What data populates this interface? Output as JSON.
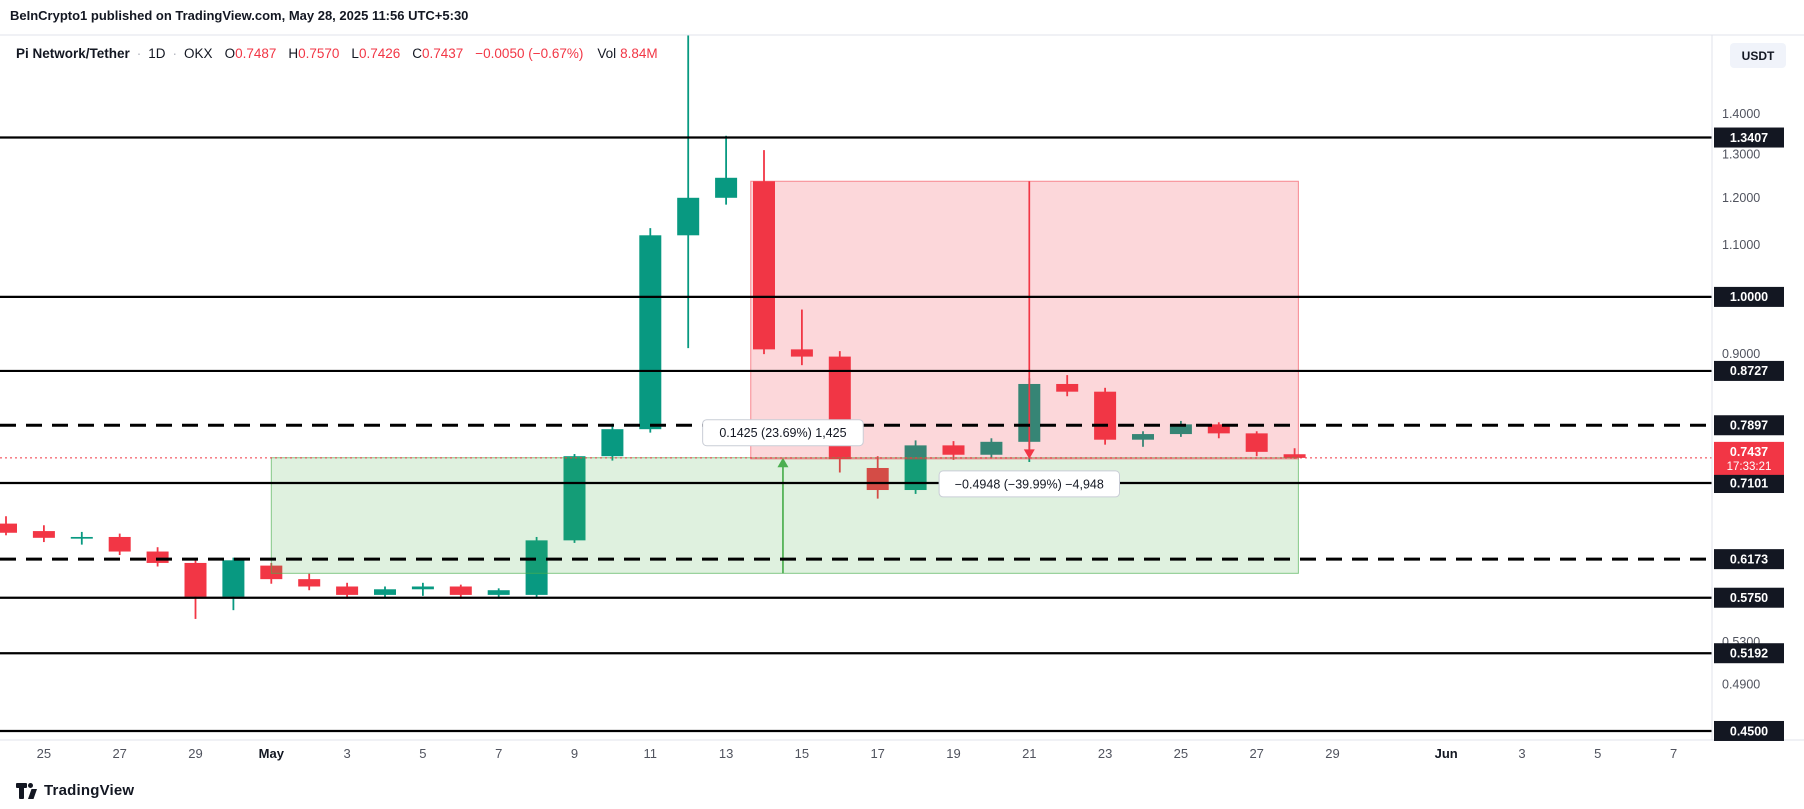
{
  "header": {
    "publisher": "BeInCrypto1",
    "published_suffix": " published on TradingView.com, May 28, 2025 11:56 UTC+5:30"
  },
  "legend": {
    "symbol": "Pi Network/Tether",
    "separator": "·",
    "interval": "1D",
    "exchange": "OKX",
    "ohlc": [
      {
        "label": "O",
        "value": "0.7487"
      },
      {
        "label": "H",
        "value": "0.7570"
      },
      {
        "label": "L",
        "value": "0.7426"
      },
      {
        "label": "C",
        "value": "0.7437"
      }
    ],
    "change": "−0.0050 (−0.67%)",
    "vol_label": "Vol",
    "vol_value": "8.84M"
  },
  "currency_button": "USDT",
  "watermark": "TradingView",
  "colors": {
    "up": "#089981",
    "down": "#f23645",
    "level": "#000000",
    "badge": "#131722",
    "axis_text": "#50535e",
    "axis_text_strong": "#131722",
    "border": "#e0e3eb",
    "up_box_fill": "rgba(76,175,80,0.18)",
    "up_box_stroke": "rgba(76,175,80,0.65)",
    "up_arrow": "#4caf50",
    "down_box_fill": "rgba(242,54,69,0.2)",
    "down_box_stroke": "rgba(242,54,69,0.55)",
    "down_arrow": "#f23645",
    "label_bg": "#ffffff",
    "label_border": "#c9cdd6"
  },
  "chart_data": {
    "type": "candlestick",
    "title": "Pi Network/Tether",
    "interval": "1D",
    "exchange": "OKX",
    "scale": "log",
    "grid": "off",
    "ylim": [
      0.4426,
      1.619
    ],
    "y_axis": {
      "plain_ticks": [
        1.4,
        1.3,
        1.2,
        1.1,
        0.9,
        0.53,
        0.49
      ],
      "last_price": 0.7437,
      "countdown": "17:33:21"
    },
    "levels": {
      "solid": [
        1.3407,
        1.0,
        0.8727,
        0.7101,
        0.575,
        0.5192,
        0.45
      ],
      "dashed": [
        0.7897,
        0.6173
      ]
    },
    "x_axis": {
      "ticks": [
        {
          "label": "25",
          "index": 1
        },
        {
          "label": "27",
          "index": 3
        },
        {
          "label": "29",
          "index": 5
        },
        {
          "label": "May",
          "index": 7,
          "bold": true
        },
        {
          "label": "3",
          "index": 9
        },
        {
          "label": "5",
          "index": 11
        },
        {
          "label": "7",
          "index": 13
        },
        {
          "label": "9",
          "index": 15
        },
        {
          "label": "11",
          "index": 17
        },
        {
          "label": "13",
          "index": 19
        },
        {
          "label": "15",
          "index": 21
        },
        {
          "label": "17",
          "index": 23
        },
        {
          "label": "19",
          "index": 25
        },
        {
          "label": "21",
          "index": 27
        },
        {
          "label": "23",
          "index": 29
        },
        {
          "label": "25",
          "index": 31
        },
        {
          "label": "27",
          "index": 33
        },
        {
          "label": "29",
          "index": 35
        },
        {
          "label": "Jun",
          "index": 38,
          "bold": true
        },
        {
          "label": "3",
          "index": 40
        },
        {
          "label": "5",
          "index": 42
        },
        {
          "label": "7",
          "index": 44
        }
      ]
    },
    "candles": [
      {
        "d": "Apr 24",
        "o": 0.659,
        "h": 0.668,
        "l": 0.645,
        "c": 0.648
      },
      {
        "d": "Apr 25",
        "o": 0.65,
        "h": 0.657,
        "l": 0.637,
        "c": 0.642
      },
      {
        "d": "Apr 26",
        "o": 0.641,
        "h": 0.649,
        "l": 0.634,
        "c": 0.643
      },
      {
        "d": "Apr 27",
        "o": 0.643,
        "h": 0.647,
        "l": 0.622,
        "c": 0.626
      },
      {
        "d": "Apr 28",
        "o": 0.626,
        "h": 0.631,
        "l": 0.609,
        "c": 0.613
      },
      {
        "d": "Apr 29",
        "o": 0.613,
        "h": 0.617,
        "l": 0.553,
        "c": 0.576
      },
      {
        "d": "Apr 30",
        "o": 0.576,
        "h": 0.619,
        "l": 0.562,
        "c": 0.616
      },
      {
        "d": "May 1",
        "o": 0.61,
        "h": 0.613,
        "l": 0.59,
        "c": 0.595
      },
      {
        "d": "May 2",
        "o": 0.595,
        "h": 0.601,
        "l": 0.583,
        "c": 0.587
      },
      {
        "d": "May 3",
        "o": 0.587,
        "h": 0.591,
        "l": 0.574,
        "c": 0.578
      },
      {
        "d": "May 4",
        "o": 0.578,
        "h": 0.587,
        "l": 0.575,
        "c": 0.584
      },
      {
        "d": "May 5",
        "o": 0.584,
        "h": 0.591,
        "l": 0.577,
        "c": 0.587
      },
      {
        "d": "May 6",
        "o": 0.587,
        "h": 0.589,
        "l": 0.574,
        "c": 0.578
      },
      {
        "d": "May 7",
        "o": 0.578,
        "h": 0.585,
        "l": 0.574,
        "c": 0.583
      },
      {
        "d": "May 8",
        "o": 0.578,
        "h": 0.643,
        "l": 0.575,
        "c": 0.639
      },
      {
        "d": "May 9",
        "o": 0.639,
        "h": 0.749,
        "l": 0.636,
        "c": 0.746
      },
      {
        "d": "May 10",
        "o": 0.746,
        "h": 0.792,
        "l": 0.74,
        "c": 0.784
      },
      {
        "d": "May 11",
        "o": 0.784,
        "h": 1.135,
        "l": 0.779,
        "c": 1.12
      },
      {
        "d": "May 12",
        "o": 1.12,
        "h": 1.62,
        "l": 0.91,
        "c": 1.2
      },
      {
        "d": "May 13",
        "o": 1.2,
        "h": 1.345,
        "l": 1.185,
        "c": 1.245
      },
      {
        "d": "May 14",
        "o": 1.237,
        "h": 1.31,
        "l": 0.9,
        "c": 0.908
      },
      {
        "d": "May 15",
        "o": 0.908,
        "h": 0.977,
        "l": 0.882,
        "c": 0.896
      },
      {
        "d": "May 16",
        "o": 0.896,
        "h": 0.905,
        "l": 0.724,
        "c": 0.742
      },
      {
        "d": "May 17",
        "o": 0.73,
        "h": 0.746,
        "l": 0.69,
        "c": 0.701
      },
      {
        "d": "May 18",
        "o": 0.701,
        "h": 0.768,
        "l": 0.696,
        "c": 0.761
      },
      {
        "d": "May 19",
        "o": 0.761,
        "h": 0.767,
        "l": 0.741,
        "c": 0.748
      },
      {
        "d": "May 20",
        "o": 0.748,
        "h": 0.771,
        "l": 0.744,
        "c": 0.766
      },
      {
        "d": "May 21",
        "o": 0.766,
        "h": 0.861,
        "l": 0.738,
        "c": 0.852
      },
      {
        "d": "May 22",
        "o": 0.852,
        "h": 0.866,
        "l": 0.833,
        "c": 0.84
      },
      {
        "d": "May 23",
        "o": 0.84,
        "h": 0.846,
        "l": 0.762,
        "c": 0.769
      },
      {
        "d": "May 24",
        "o": 0.769,
        "h": 0.781,
        "l": 0.759,
        "c": 0.777
      },
      {
        "d": "May 25",
        "o": 0.777,
        "h": 0.796,
        "l": 0.773,
        "c": 0.791
      },
      {
        "d": "May 26",
        "o": 0.791,
        "h": 0.794,
        "l": 0.771,
        "c": 0.778
      },
      {
        "d": "May 27",
        "o": 0.778,
        "h": 0.781,
        "l": 0.746,
        "c": 0.752
      },
      {
        "d": "May 28",
        "o": 0.7487,
        "h": 0.757,
        "l": 0.7426,
        "c": 0.7437
      }
    ],
    "measurements": [
      {
        "direction": "up",
        "label": "0.1425 (23.69%) 1,425",
        "price_from": 0.6014,
        "price_to": 0.7439,
        "start_date": "May 1",
        "end_date": "May 28",
        "start_index": 7,
        "end_index": 34.1,
        "arrow_index": 20.5
      },
      {
        "direction": "down",
        "label": "−0.4948 (−39.99%) −4,948",
        "price_from": 1.2371,
        "price_to": 0.7423,
        "start_date": "May 14",
        "end_date": "May 28",
        "start_index": 19.65,
        "end_index": 34.1,
        "arrow_index": 27
      }
    ]
  }
}
